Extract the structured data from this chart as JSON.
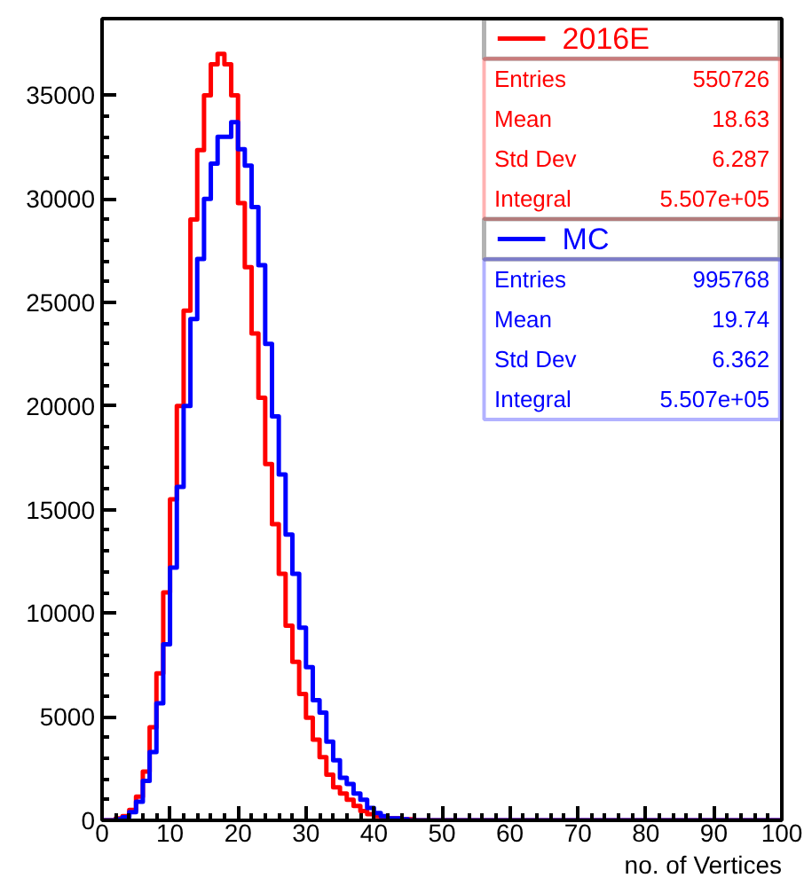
{
  "chart_data": {
    "type": "histogram",
    "bins": [
      0,
      1,
      2,
      3,
      4,
      5,
      6,
      7,
      8,
      9,
      10,
      11,
      12,
      13,
      14,
      15,
      16,
      17,
      18,
      19,
      20,
      21,
      22,
      23,
      24,
      25,
      26,
      27,
      28,
      29,
      30,
      31,
      32,
      33,
      34,
      35,
      36,
      37,
      38,
      39,
      40,
      41,
      42,
      43,
      44,
      45,
      46,
      47,
      48,
      49,
      50,
      51,
      52,
      53,
      54,
      55,
      56,
      57,
      58,
      59,
      60,
      61,
      62,
      63,
      64,
      65,
      66,
      67,
      68,
      69,
      70,
      71,
      72,
      73,
      74,
      75,
      76,
      77,
      78,
      79,
      80,
      81,
      82,
      83,
      84,
      85,
      86,
      87,
      88,
      89,
      90,
      91,
      92,
      93,
      94,
      95,
      96,
      97,
      98,
      99,
      100
    ],
    "series": [
      {
        "name": "2016E",
        "color": "#ff0000",
        "values": [
          0,
          0,
          100,
          200,
          500,
          1150,
          2350,
          4500,
          7100,
          11000,
          15500,
          20000,
          24600,
          29000,
          32350,
          35000,
          36500,
          37000,
          36500,
          35000,
          29800,
          26700,
          23500,
          20400,
          17200,
          14300,
          11900,
          9400,
          7650,
          6100,
          4950,
          3900,
          3050,
          2200,
          1600,
          1300,
          1000,
          700,
          450,
          300,
          200,
          150,
          100,
          100,
          50,
          50,
          0,
          0,
          0,
          0,
          0,
          0,
          0,
          0,
          0,
          0,
          0,
          0,
          0,
          0,
          0,
          0,
          0,
          0,
          0,
          0,
          0,
          0,
          0,
          0,
          0,
          0,
          0,
          0,
          0,
          0,
          0,
          0,
          0,
          0,
          0,
          0,
          0,
          0,
          0,
          0,
          0,
          0,
          0,
          0,
          0,
          0,
          0,
          0,
          0,
          0,
          0,
          0,
          0,
          0
        ]
      },
      {
        "name": "MC",
        "color": "#0000ff",
        "values": [
          0,
          0,
          50,
          150,
          400,
          900,
          1900,
          3300,
          5650,
          8500,
          12200,
          16100,
          20000,
          24200,
          27100,
          30000,
          31700,
          33000,
          33000,
          33700,
          32400,
          31600,
          29600,
          26800,
          23000,
          19500,
          16700,
          13800,
          11900,
          9300,
          7400,
          5800,
          5200,
          3800,
          2900,
          2050,
          1750,
          1300,
          1000,
          600,
          350,
          200,
          100,
          100,
          50,
          0,
          0,
          0,
          0,
          0,
          0,
          0,
          0,
          0,
          0,
          0,
          0,
          0,
          0,
          0,
          0,
          0,
          0,
          0,
          0,
          0,
          0,
          0,
          0,
          0,
          0,
          0,
          0,
          0,
          0,
          0,
          0,
          0,
          0,
          0,
          0,
          0,
          0,
          0,
          0,
          0,
          0,
          0,
          0,
          0,
          0,
          0,
          0,
          0,
          0,
          0,
          0,
          0,
          0,
          0
        ]
      }
    ],
    "xlim": [
      0,
      100
    ],
    "ylim": [
      0,
      38700
    ],
    "xticks": [
      0,
      10,
      20,
      30,
      40,
      50,
      60,
      70,
      80,
      90,
      100
    ],
    "yticks": [
      0,
      5000,
      10000,
      15000,
      20000,
      25000,
      30000,
      35000
    ],
    "xlabel": "no. of Vertices",
    "legend": "top right",
    "grid": false,
    "annotations": [
      "Entries 550726",
      "Mean 18.63",
      "Std Dev 6.287",
      "Integral 5.507e+05",
      "Entries 995768",
      "Mean 19.74",
      "Std Dev 6.362",
      "Integral 5.507e+05"
    ]
  }
}
